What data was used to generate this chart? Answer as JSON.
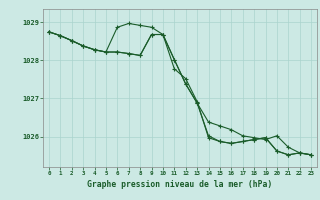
{
  "xlabel": "Graphe pression niveau de la mer (hPa)",
  "xlim": [
    -0.5,
    23.5
  ],
  "ylim": [
    1025.2,
    1029.35
  ],
  "yticks": [
    1026,
    1027,
    1028,
    1029
  ],
  "xticks": [
    0,
    1,
    2,
    3,
    4,
    5,
    6,
    7,
    8,
    9,
    10,
    11,
    12,
    13,
    14,
    15,
    16,
    17,
    18,
    19,
    20,
    21,
    22,
    23
  ],
  "bg_color": "#cce9e4",
  "grid_color": "#aad4ce",
  "line_color": "#1a5c2a",
  "marker": "+",
  "line_width": 0.8,
  "marker_size": 3.5,
  "marker_edge_width": 0.8,
  "series1": [
    [
      0,
      1028.75
    ],
    [
      1,
      1028.65
    ],
    [
      2,
      1028.52
    ],
    [
      3,
      1028.38
    ],
    [
      4,
      1028.28
    ],
    [
      5,
      1028.22
    ],
    [
      6,
      1028.87
    ],
    [
      7,
      1028.97
    ],
    [
      8,
      1028.92
    ],
    [
      9,
      1028.87
    ],
    [
      10,
      1028.68
    ],
    [
      11,
      1027.78
    ],
    [
      12,
      1027.52
    ],
    [
      13,
      1026.92
    ],
    [
      14,
      1025.97
    ],
    [
      15,
      1025.87
    ],
    [
      16,
      1025.82
    ],
    [
      17,
      1025.87
    ],
    [
      18,
      1025.92
    ],
    [
      19,
      1025.97
    ],
    [
      20,
      1025.62
    ],
    [
      21,
      1025.52
    ],
    [
      22,
      1025.57
    ],
    [
      23,
      1025.52
    ]
  ],
  "series2": [
    [
      0,
      1028.75
    ],
    [
      1,
      1028.65
    ],
    [
      2,
      1028.52
    ],
    [
      3,
      1028.38
    ],
    [
      4,
      1028.28
    ],
    [
      5,
      1028.22
    ],
    [
      6,
      1028.22
    ],
    [
      7,
      1028.18
    ],
    [
      8,
      1028.13
    ],
    [
      9,
      1028.68
    ],
    [
      10,
      1028.68
    ],
    [
      11,
      1028.02
    ],
    [
      12,
      1027.38
    ],
    [
      13,
      1026.88
    ],
    [
      14,
      1026.38
    ],
    [
      15,
      1026.28
    ],
    [
      16,
      1026.18
    ],
    [
      17,
      1026.02
    ],
    [
      18,
      1025.97
    ],
    [
      19,
      1025.92
    ],
    [
      20,
      1026.02
    ],
    [
      21,
      1025.72
    ],
    [
      22,
      1025.57
    ],
    [
      23,
      1025.52
    ]
  ],
  "series3": [
    [
      0,
      1028.75
    ],
    [
      1,
      1028.65
    ],
    [
      2,
      1028.52
    ],
    [
      3,
      1028.38
    ],
    [
      4,
      1028.28
    ],
    [
      5,
      1028.22
    ],
    [
      6,
      1028.22
    ],
    [
      7,
      1028.18
    ],
    [
      8,
      1028.13
    ],
    [
      9,
      1028.68
    ],
    [
      10,
      1028.68
    ],
    [
      11,
      1028.02
    ],
    [
      12,
      1027.38
    ],
    [
      13,
      1026.88
    ],
    [
      14,
      1026.02
    ],
    [
      15,
      1025.87
    ],
    [
      16,
      1025.82
    ],
    [
      17,
      1025.87
    ],
    [
      18,
      1025.92
    ],
    [
      19,
      1025.97
    ],
    [
      20,
      1025.62
    ],
    [
      21,
      1025.52
    ],
    [
      22,
      1025.57
    ],
    [
      23,
      1025.52
    ]
  ]
}
